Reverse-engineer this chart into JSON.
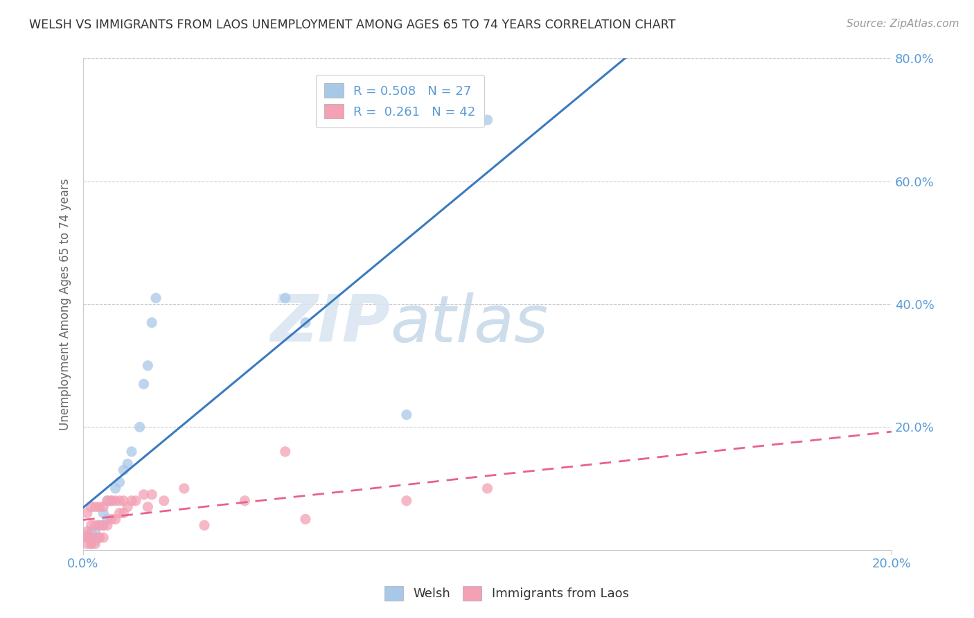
{
  "title": "WELSH VS IMMIGRANTS FROM LAOS UNEMPLOYMENT AMONG AGES 65 TO 74 YEARS CORRELATION CHART",
  "source": "Source: ZipAtlas.com",
  "ylabel": "Unemployment Among Ages 65 to 74 years",
  "legend_welsh": "Welsh",
  "legend_laos": "Immigrants from Laos",
  "R_welsh": 0.508,
  "N_welsh": 27,
  "R_laos": 0.261,
  "N_laos": 42,
  "welsh_color": "#a8c8e8",
  "laos_color": "#f4a0b5",
  "welsh_line_color": "#3a7abf",
  "laos_line_color": "#e86090",
  "watermark_zip": "ZIP",
  "watermark_atlas": "atlas",
  "welsh_x": [
    0.001,
    0.001,
    0.002,
    0.002,
    0.003,
    0.003,
    0.004,
    0.004,
    0.005,
    0.005,
    0.006,
    0.006,
    0.007,
    0.008,
    0.009,
    0.01,
    0.011,
    0.012,
    0.014,
    0.015,
    0.016,
    0.017,
    0.018,
    0.05,
    0.055,
    0.08,
    0.1
  ],
  "welsh_y": [
    0.02,
    0.025,
    0.01,
    0.03,
    0.015,
    0.03,
    0.02,
    0.04,
    0.04,
    0.06,
    0.05,
    0.08,
    0.08,
    0.1,
    0.11,
    0.13,
    0.14,
    0.16,
    0.2,
    0.27,
    0.3,
    0.37,
    0.41,
    0.41,
    0.37,
    0.22,
    0.7
  ],
  "laos_x": [
    0.001,
    0.001,
    0.001,
    0.001,
    0.002,
    0.002,
    0.002,
    0.002,
    0.003,
    0.003,
    0.003,
    0.003,
    0.004,
    0.004,
    0.004,
    0.005,
    0.005,
    0.005,
    0.006,
    0.006,
    0.007,
    0.007,
    0.008,
    0.008,
    0.009,
    0.009,
    0.01,
    0.01,
    0.011,
    0.012,
    0.013,
    0.015,
    0.016,
    0.017,
    0.02,
    0.025,
    0.03,
    0.04,
    0.05,
    0.055,
    0.08,
    0.1
  ],
  "laos_y": [
    0.01,
    0.02,
    0.03,
    0.06,
    0.01,
    0.02,
    0.04,
    0.07,
    0.01,
    0.02,
    0.04,
    0.07,
    0.02,
    0.04,
    0.07,
    0.02,
    0.04,
    0.07,
    0.04,
    0.08,
    0.05,
    0.08,
    0.05,
    0.08,
    0.06,
    0.08,
    0.06,
    0.08,
    0.07,
    0.08,
    0.08,
    0.09,
    0.07,
    0.09,
    0.08,
    0.1,
    0.04,
    0.08,
    0.16,
    0.05,
    0.08,
    0.1
  ],
  "xlim": [
    0.0,
    0.2
  ],
  "ylim": [
    0.0,
    0.8
  ],
  "bg_color": "#ffffff",
  "grid_color": "#cccccc",
  "tick_color": "#5b9bd5",
  "ylabel_color": "#666666",
  "title_color": "#333333",
  "source_color": "#999999"
}
